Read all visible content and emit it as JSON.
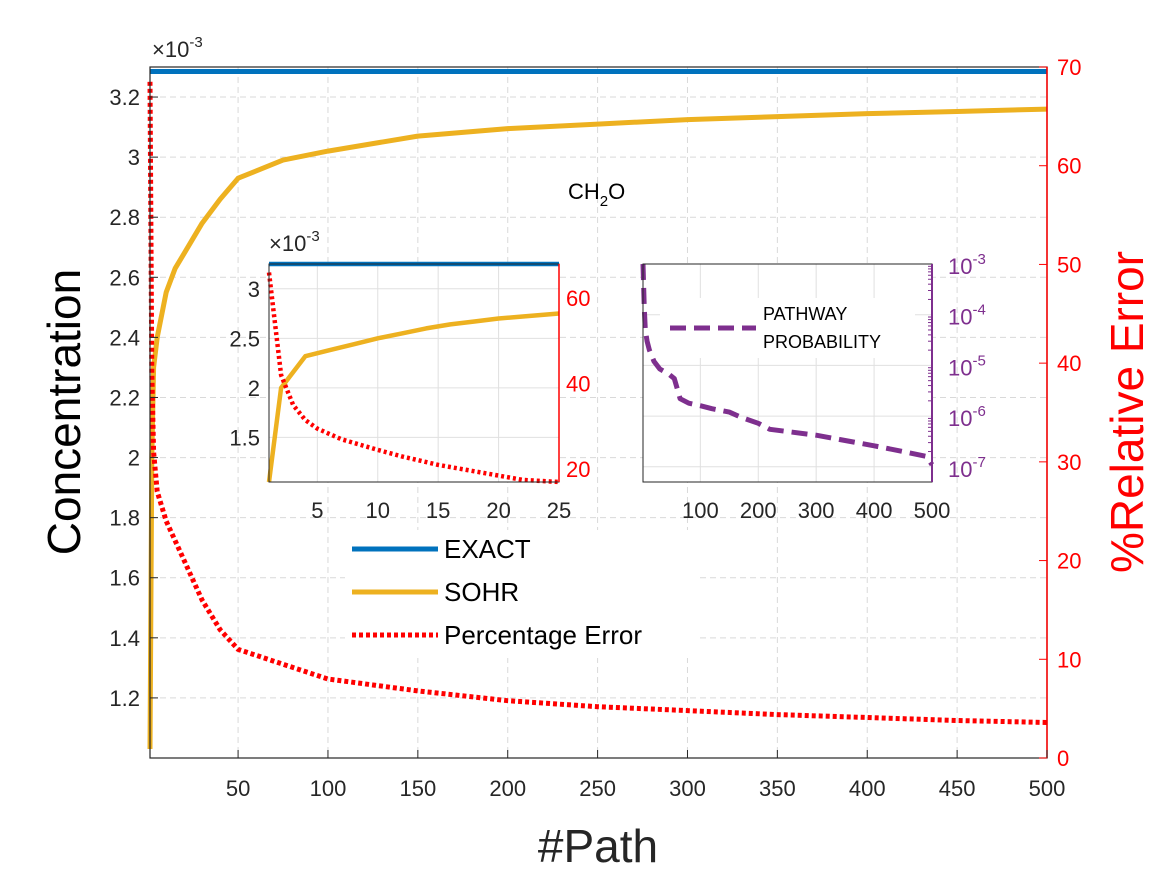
{
  "chart_data": {
    "type": "line",
    "main": {
      "annotation_main": "CH",
      "annotation_sub": "2",
      "annotation_tail": "O",
      "xlabel": "#Path",
      "ylabel": "Concentration",
      "ylabel_right": "%Relative Error",
      "exponent_base": "×10",
      "exponent_power": "-3",
      "xlim": [
        1,
        500
      ],
      "ylim": [
        1.0,
        3.3
      ],
      "ylim_right": [
        0,
        70
      ],
      "xticks": [
        50,
        100,
        150,
        200,
        250,
        300,
        350,
        400,
        450,
        500
      ],
      "yticks": [
        1.2,
        1.4,
        1.6,
        1.8,
        2,
        2.2,
        2.4,
        2.6,
        2.8,
        3,
        3.2
      ],
      "yticks_right": [
        0,
        10,
        20,
        30,
        40,
        50,
        60,
        70
      ],
      "grid": true,
      "legend_location": "center-left",
      "series": [
        {
          "name": "EXACT",
          "axis": "left",
          "color": "#0072BD",
          "style": "solid",
          "x": [
            1,
            500
          ],
          "y": [
            3.285,
            3.285
          ]
        },
        {
          "name": "SOHR",
          "axis": "left",
          "color": "#EDB120",
          "style": "solid",
          "x": [
            1,
            2,
            3,
            5,
            10,
            15,
            20,
            30,
            40,
            50,
            75,
            100,
            150,
            200,
            250,
            300,
            350,
            400,
            450,
            500
          ],
          "y": [
            1.03,
            2.0,
            2.3,
            2.4,
            2.55,
            2.63,
            2.68,
            2.78,
            2.86,
            2.93,
            2.99,
            3.02,
            3.07,
            3.095,
            3.11,
            3.125,
            3.135,
            3.145,
            3.152,
            3.16
          ]
        },
        {
          "name": "Percentage Error",
          "axis": "right",
          "color": "#FF0000",
          "style": "dotted",
          "x": [
            1,
            2,
            3,
            5,
            10,
            15,
            20,
            25,
            30,
            40,
            50,
            75,
            100,
            150,
            200,
            250,
            300,
            350,
            400,
            450,
            500
          ],
          "y": [
            68.5,
            39,
            31,
            27,
            24,
            22,
            20,
            18,
            16,
            13,
            11,
            9.5,
            8,
            6.8,
            5.8,
            5.2,
            4.8,
            4.4,
            4.1,
            3.8,
            3.6
          ]
        }
      ]
    },
    "inset_left": {
      "exponent_base": "×10",
      "exponent_power": "-3",
      "xlim": [
        1,
        25
      ],
      "ylim": [
        1.05,
        3.25
      ],
      "ylim_right": [
        17,
        68
      ],
      "xticks": [
        5,
        10,
        15,
        20,
        25
      ],
      "yticks": [
        1.5,
        2,
        2.5,
        3
      ],
      "yticks_right": [
        20,
        40,
        60
      ],
      "grid": true,
      "series": [
        {
          "name": "EXACT",
          "axis": "left",
          "color": "#0072BD",
          "style": "solid",
          "x": [
            1,
            25
          ],
          "y": [
            3.285,
            3.285
          ]
        },
        {
          "name": "SOHR",
          "axis": "left",
          "color": "#EDB120",
          "style": "solid",
          "x": [
            1,
            2,
            4,
            6,
            8,
            10,
            12,
            14,
            16,
            18,
            20,
            22,
            25
          ],
          "y": [
            1.05,
            2.0,
            2.32,
            2.38,
            2.44,
            2.5,
            2.55,
            2.6,
            2.64,
            2.67,
            2.7,
            2.72,
            2.75
          ]
        },
        {
          "name": "Percentage Error",
          "axis": "right",
          "color": "#FF0000",
          "style": "dotted",
          "x": [
            1,
            2,
            3,
            4,
            5,
            7,
            10,
            12,
            15,
            18,
            20,
            22,
            25
          ],
          "y": [
            66,
            42,
            35,
            31.5,
            29.5,
            27,
            24.5,
            23,
            21,
            19.5,
            18.5,
            17.5,
            17
          ]
        }
      ]
    },
    "inset_right": {
      "legend_label_1": "PATHWAY",
      "legend_label_2": "PROBABILITY",
      "xlim": [
        1,
        500
      ],
      "ylog_min_exp": -7.3,
      "ylog_max_exp": -3,
      "xticks": [
        100,
        200,
        300,
        400,
        500
      ],
      "yticks_right_base": "10",
      "yticks_right_exps": [
        "-3",
        "-4",
        "-5",
        "-6",
        "-7"
      ],
      "grid": true,
      "series": [
        {
          "name": "PATHWAY PROBABILITY",
          "axis": "right",
          "color": "#7E2F8E",
          "style": "dashed",
          "x": [
            1,
            3,
            5,
            8,
            12,
            20,
            30,
            45,
            55,
            60,
            65,
            80,
            100,
            120,
            150,
            170,
            200,
            220,
            300,
            350,
            400,
            450,
            490,
            500
          ],
          "y": [
            0.001,
            0.00015,
            5e-05,
            3e-05,
            2e-05,
            1.2e-05,
            8.5e-06,
            6.8e-06,
            5.5e-06,
            3.5e-06,
            2.2e-06,
            1.8e-06,
            1.6e-06,
            1.4e-06,
            1.2e-06,
            9.5e-07,
            7.2e-07,
            5.5e-07,
            4.2e-07,
            3.3e-07,
            2.6e-07,
            2e-07,
            1.6e-07,
            1.1e-07
          ]
        }
      ]
    },
    "legend": [
      "EXACT",
      "SOHR",
      "Percentage Error"
    ]
  }
}
